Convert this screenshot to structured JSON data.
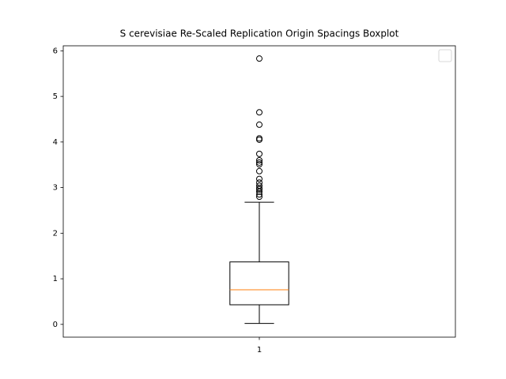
{
  "chart_data": {
    "type": "box",
    "title": "S cerevisiae Re-Scaled Replication Origin Spacings Boxplot",
    "categories": [
      "1"
    ],
    "boxes": [
      {
        "whislo": 0.02,
        "q1": 0.43,
        "med": 0.76,
        "q3": 1.37,
        "whishi": 2.68,
        "fliers": [
          5.83,
          4.65,
          4.38,
          4.08,
          4.05,
          3.74,
          3.6,
          3.55,
          3.51,
          3.36,
          3.19,
          3.11,
          3.04,
          2.99,
          2.96,
          2.91,
          2.85,
          2.8
        ]
      }
    ],
    "box_color": "#000000",
    "median_color": "#ff7f0e",
    "ylim": [
      -0.28,
      6.11
    ],
    "yticks": [
      0,
      1,
      2,
      3,
      4,
      5,
      6
    ]
  }
}
